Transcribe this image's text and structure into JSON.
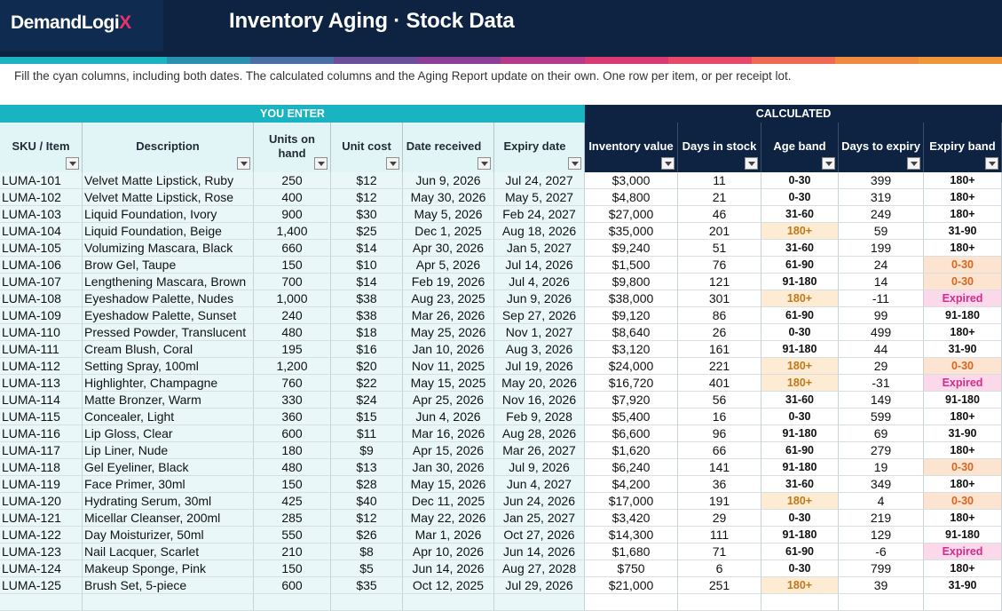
{
  "app": {
    "logo_text": "DemandLogi",
    "logo_accent": "X",
    "title": "Inventory Aging · Stock Data",
    "instructions": "Fill the cyan columns, including both dates. The calculated columns and the Aging Report update on their own. One row per item, or per receipt lot."
  },
  "colors": {
    "header_bg": "#0d2341",
    "enter_header": "#1ab3c1",
    "stripe": [
      "#1ab3c1",
      "#1ab3c1",
      "#2b8fb2",
      "#4a6fa5",
      "#6a4f9c",
      "#8c3f97",
      "#b63a8a",
      "#d93a73",
      "#e8496b",
      "#ee6a54",
      "#f08a3c",
      "#f0963a"
    ]
  },
  "groups": {
    "enter": "YOU ENTER",
    "calculated": "CALCULATED"
  },
  "columns": [
    {
      "label": "SKU / Item"
    },
    {
      "label": "Description"
    },
    {
      "label": "Units on hand"
    },
    {
      "label": "Unit cost"
    },
    {
      "label": "Date received"
    },
    {
      "label": "Expiry date"
    },
    {
      "label": "Inventory value"
    },
    {
      "label": "Days in stock"
    },
    {
      "label": "Age band"
    },
    {
      "label": "Days to expiry"
    },
    {
      "label": "Expiry band"
    }
  ],
  "rows": [
    [
      "LUMA-101",
      "Velvet Matte Lipstick, Ruby",
      "250",
      "$12",
      "Jun 9, 2026",
      "Jul 24, 2027",
      "$3,000",
      "11",
      "0-30",
      "399",
      "180+"
    ],
    [
      "LUMA-102",
      "Velvet Matte Lipstick, Rose",
      "400",
      "$12",
      "May 30, 2026",
      "May 5, 2027",
      "$4,800",
      "21",
      "0-30",
      "319",
      "180+"
    ],
    [
      "LUMA-103",
      "Liquid Foundation, Ivory",
      "900",
      "$30",
      "May 5, 2026",
      "Feb 24, 2027",
      "$27,000",
      "46",
      "31-60",
      "249",
      "180+"
    ],
    [
      "LUMA-104",
      "Liquid Foundation, Beige",
      "1,400",
      "$25",
      "Dec 1, 2025",
      "Aug 18, 2026",
      "$35,000",
      "201",
      "180+",
      "59",
      "31-90"
    ],
    [
      "LUMA-105",
      "Volumizing Mascara, Black",
      "660",
      "$14",
      "Apr 30, 2026",
      "Jan 5, 2027",
      "$9,240",
      "51",
      "31-60",
      "199",
      "180+"
    ],
    [
      "LUMA-106",
      "Brow Gel, Taupe",
      "150",
      "$10",
      "Apr 5, 2026",
      "Jul 14, 2026",
      "$1,500",
      "76",
      "61-90",
      "24",
      "0-30"
    ],
    [
      "LUMA-107",
      "Lengthening Mascara, Brown",
      "700",
      "$14",
      "Feb 19, 2026",
      "Jul 4, 2026",
      "$9,800",
      "121",
      "91-180",
      "14",
      "0-30"
    ],
    [
      "LUMA-108",
      "Eyeshadow Palette, Nudes",
      "1,000",
      "$38",
      "Aug 23, 2025",
      "Jun 9, 2026",
      "$38,000",
      "301",
      "180+",
      "-11",
      "Expired"
    ],
    [
      "LUMA-109",
      "Eyeshadow Palette, Sunset",
      "240",
      "$38",
      "Mar 26, 2026",
      "Sep 27, 2026",
      "$9,120",
      "86",
      "61-90",
      "99",
      "91-180"
    ],
    [
      "LUMA-110",
      "Pressed Powder, Translucent",
      "480",
      "$18",
      "May 25, 2026",
      "Nov 1, 2027",
      "$8,640",
      "26",
      "0-30",
      "499",
      "180+"
    ],
    [
      "LUMA-111",
      "Cream Blush, Coral",
      "195",
      "$16",
      "Jan 10, 2026",
      "Aug 3, 2026",
      "$3,120",
      "161",
      "91-180",
      "44",
      "31-90"
    ],
    [
      "LUMA-112",
      "Setting Spray, 100ml",
      "1,200",
      "$20",
      "Nov 11, 2025",
      "Jul 19, 2026",
      "$24,000",
      "221",
      "180+",
      "29",
      "0-30"
    ],
    [
      "LUMA-113",
      "Highlighter, Champagne",
      "760",
      "$22",
      "May 15, 2025",
      "May 20, 2026",
      "$16,720",
      "401",
      "180+",
      "-31",
      "Expired"
    ],
    [
      "LUMA-114",
      "Matte Bronzer, Warm",
      "330",
      "$24",
      "Apr 25, 2026",
      "Nov 16, 2026",
      "$7,920",
      "56",
      "31-60",
      "149",
      "91-180"
    ],
    [
      "LUMA-115",
      "Concealer, Light",
      "360",
      "$15",
      "Jun 4, 2026",
      "Feb 9, 2028",
      "$5,400",
      "16",
      "0-30",
      "599",
      "180+"
    ],
    [
      "LUMA-116",
      "Lip Gloss, Clear",
      "600",
      "$11",
      "Mar 16, 2026",
      "Aug 28, 2026",
      "$6,600",
      "96",
      "91-180",
      "69",
      "31-90"
    ],
    [
      "LUMA-117",
      "Lip Liner, Nude",
      "180",
      "$9",
      "Apr 15, 2026",
      "Mar 26, 2027",
      "$1,620",
      "66",
      "61-90",
      "279",
      "180+"
    ],
    [
      "LUMA-118",
      "Gel Eyeliner, Black",
      "480",
      "$13",
      "Jan 30, 2026",
      "Jul 9, 2026",
      "$6,240",
      "141",
      "91-180",
      "19",
      "0-30"
    ],
    [
      "LUMA-119",
      "Face Primer, 30ml",
      "150",
      "$28",
      "May 15, 2026",
      "Jun 4, 2027",
      "$4,200",
      "36",
      "31-60",
      "349",
      "180+"
    ],
    [
      "LUMA-120",
      "Hydrating Serum, 30ml",
      "425",
      "$40",
      "Dec 11, 2025",
      "Jun 24, 2026",
      "$17,000",
      "191",
      "180+",
      "4",
      "0-30"
    ],
    [
      "LUMA-121",
      "Micellar Cleanser, 200ml",
      "285",
      "$12",
      "May 22, 2026",
      "Jan 25, 2027",
      "$3,420",
      "29",
      "0-30",
      "219",
      "180+"
    ],
    [
      "LUMA-122",
      "Day Moisturizer, 50ml",
      "550",
      "$26",
      "Mar 1, 2026",
      "Oct 27, 2026",
      "$14,300",
      "111",
      "91-180",
      "129",
      "91-180"
    ],
    [
      "LUMA-123",
      "Nail Lacquer, Scarlet",
      "210",
      "$8",
      "Apr 10, 2026",
      "Jun 14, 2026",
      "$1,680",
      "71",
      "61-90",
      "-6",
      "Expired"
    ],
    [
      "LUMA-124",
      "Makeup Sponge, Pink",
      "150",
      "$5",
      "Jun 14, 2026",
      "Aug 27, 2028",
      "$750",
      "6",
      "0-30",
      "799",
      "180+"
    ],
    [
      "LUMA-125",
      "Brush Set, 5-piece",
      "600",
      "$35",
      "Oct 12, 2025",
      "Jul 29, 2026",
      "$21,000",
      "251",
      "180+",
      "39",
      "31-90"
    ]
  ]
}
